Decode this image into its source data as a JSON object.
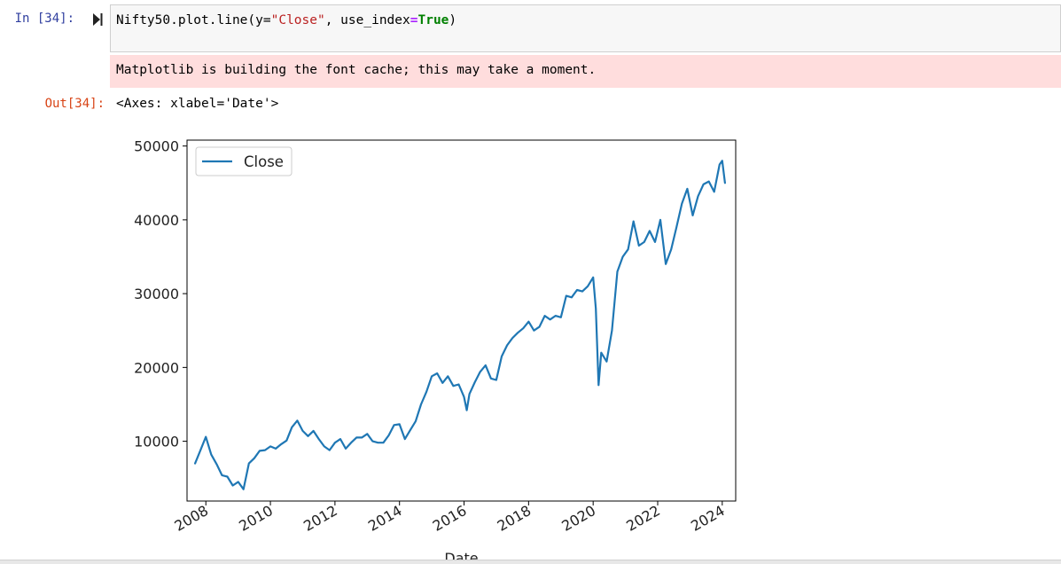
{
  "cell": {
    "in_prompt": "In [34]:",
    "out_prompt": "Out[34]:",
    "code": {
      "part1": "Nifty50.plot.line(y=",
      "string": "\"Close\"",
      "part2": ", use_index",
      "eq": "=",
      "keyword": "True",
      "part3": ")"
    },
    "stderr": "Matplotlib is building the font cache; this may take a moment.",
    "output_text": "<Axes: xlabel='Date'>"
  },
  "colors": {
    "in_prompt": "#303F9F",
    "out_prompt": "#D84315",
    "stderr_bg": "#ffdddd",
    "line": "#1f77b4"
  },
  "icons": {
    "run": "run-cell-icon"
  },
  "chart_data": {
    "type": "line",
    "xlabel": "Date",
    "ylabel": "",
    "legend": [
      "Close"
    ],
    "legend_position": "upper-left",
    "x_ticks": [
      "2008",
      "2010",
      "2012",
      "2014",
      "2016",
      "2018",
      "2020",
      "2022",
      "2024"
    ],
    "y_ticks": [
      "10000",
      "20000",
      "30000",
      "40000",
      "50000"
    ],
    "xlim": [
      "2007-06",
      "2024-06"
    ],
    "ylim": [
      1900,
      50800
    ],
    "grid": false,
    "series": [
      {
        "name": "Close",
        "x": [
          "2007-09",
          "2007-11",
          "2008-01",
          "2008-03",
          "2008-05",
          "2008-07",
          "2008-09",
          "2008-11",
          "2009-01",
          "2009-03",
          "2009-05",
          "2009-07",
          "2009-09",
          "2009-11",
          "2010-01",
          "2010-03",
          "2010-05",
          "2010-07",
          "2010-09",
          "2010-11",
          "2011-01",
          "2011-03",
          "2011-05",
          "2011-07",
          "2011-09",
          "2011-11",
          "2012-01",
          "2012-03",
          "2012-05",
          "2012-07",
          "2012-09",
          "2012-11",
          "2013-01",
          "2013-03",
          "2013-05",
          "2013-07",
          "2013-09",
          "2013-11",
          "2014-01",
          "2014-03",
          "2014-05",
          "2014-07",
          "2014-09",
          "2014-11",
          "2015-01",
          "2015-03",
          "2015-05",
          "2015-07",
          "2015-09",
          "2015-11",
          "2016-01",
          "2016-02",
          "2016-03",
          "2016-05",
          "2016-07",
          "2016-09",
          "2016-11",
          "2017-01",
          "2017-03",
          "2017-05",
          "2017-07",
          "2017-09",
          "2017-11",
          "2018-01",
          "2018-03",
          "2018-05",
          "2018-07",
          "2018-09",
          "2018-11",
          "2019-01",
          "2019-03",
          "2019-05",
          "2019-07",
          "2019-09",
          "2019-11",
          "2020-01",
          "2020-02",
          "2020-03",
          "2020-04",
          "2020-06",
          "2020-08",
          "2020-10",
          "2020-12",
          "2021-02",
          "2021-04",
          "2021-06",
          "2021-08",
          "2021-10",
          "2021-12",
          "2022-02",
          "2022-04",
          "2022-06",
          "2022-08",
          "2022-10",
          "2022-12",
          "2023-02",
          "2023-04",
          "2023-06",
          "2023-08",
          "2023-10",
          "2023-12",
          "2024-01",
          "2024-02"
        ],
        "values": [
          7000,
          8800,
          10600,
          8200,
          6900,
          5400,
          5200,
          4000,
          4500,
          3500,
          7000,
          7700,
          8700,
          8800,
          9300,
          9000,
          9600,
          10100,
          11900,
          12800,
          11400,
          10700,
          11400,
          10300,
          9300,
          8800,
          9800,
          10300,
          9000,
          9800,
          10500,
          10500,
          11000,
          10000,
          9800,
          9800,
          10800,
          12200,
          12300,
          10300,
          11500,
          12700,
          15000,
          16700,
          18800,
          19200,
          17900,
          18800,
          17500,
          17700,
          16000,
          14200,
          16400,
          18000,
          19400,
          20300,
          18500,
          18300,
          21500,
          23000,
          24000,
          24700,
          25300,
          26200,
          25000,
          25500,
          27000,
          26500,
          27000,
          26800,
          29700,
          29500,
          30500,
          30300,
          31000,
          32200,
          28000,
          17600,
          22000,
          20800,
          25000,
          33000,
          35000,
          36000,
          39800,
          36500,
          37000,
          38500,
          37000,
          40000,
          34000,
          36000,
          39000,
          42200,
          44200,
          40600,
          43200,
          44800,
          45200,
          43800,
          47500,
          48000,
          45000
        ]
      }
    ]
  }
}
